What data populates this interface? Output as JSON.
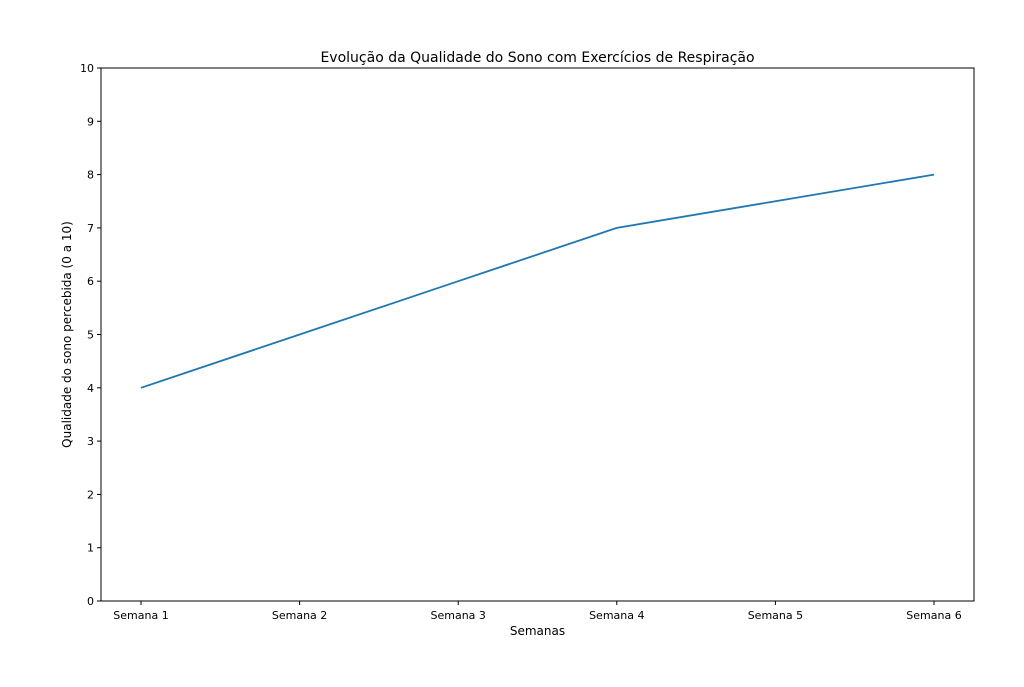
{
  "chart_data": {
    "type": "line",
    "title": "Evolução da Qualidade do Sono com Exercícios de Respiração",
    "xlabel": "Semanas",
    "ylabel": "Qualidade do sono percebida (0 a 10)",
    "categories": [
      "Semana 1",
      "Semana 2",
      "Semana 3",
      "Semana 4",
      "Semana 5",
      "Semana 6"
    ],
    "series": [
      {
        "values": [
          4,
          5,
          6,
          7,
          7.5,
          8
        ],
        "color": "#1f77b4"
      }
    ],
    "ylim": [
      0,
      10
    ],
    "yticks": [
      "0",
      "1",
      "2",
      "3",
      "4",
      "5",
      "6",
      "7",
      "8",
      "9",
      "10"
    ],
    "grid": false,
    "legend": "none"
  }
}
